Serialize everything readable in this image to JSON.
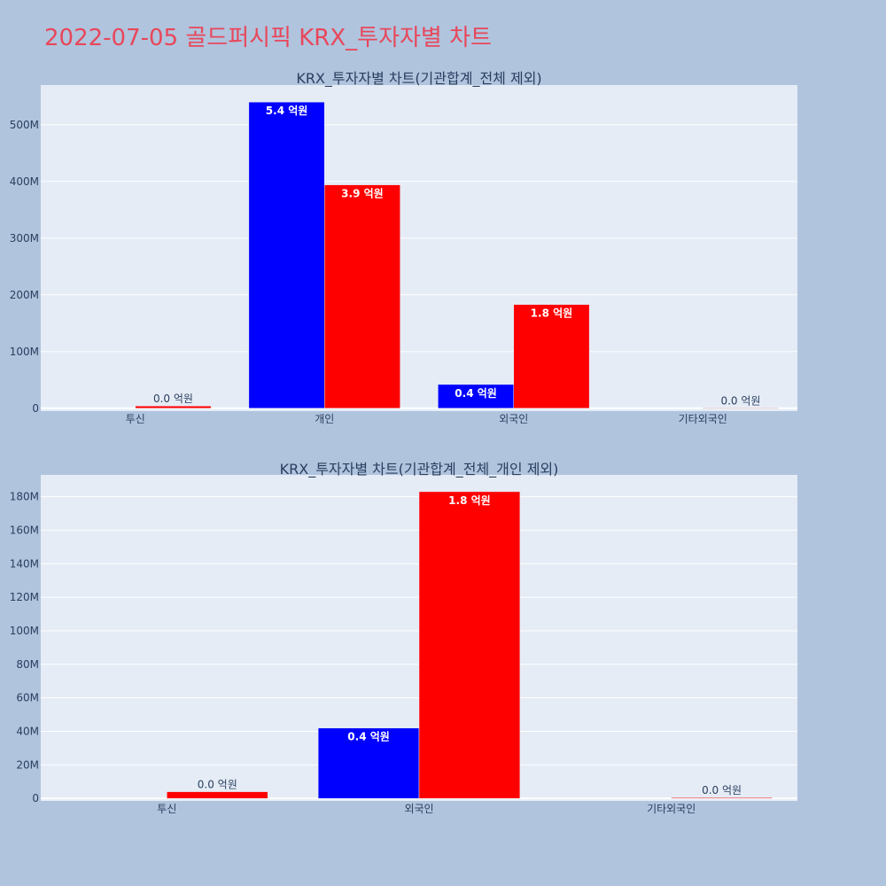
{
  "page_title": "2022-07-05 골드퍼시픽 KRX_투자자별 차트",
  "colors": {
    "background": "#b0c4de",
    "plot_bg": "#e5ecf6",
    "title": "#e8475a",
    "series_buy": "#0000ff",
    "series_sell": "#ff0000"
  },
  "chart_data": [
    {
      "type": "bar",
      "title": "KRX_투자자별 차트(기관합계_전체 제외)",
      "categories": [
        "투신",
        "개인",
        "외국인",
        "기타외국인"
      ],
      "series": [
        {
          "color": "#0000ff",
          "values": [
            0,
            540000000,
            42000000,
            0
          ],
          "labels": [
            "",
            "5.4 억원",
            "0.4 억원",
            ""
          ]
        },
        {
          "color": "#ff0000",
          "values": [
            4000000,
            394000000,
            183000000,
            500000
          ],
          "labels": [
            "0.0 억원",
            "3.9 억원",
            "1.8 억원",
            "0.0 억원"
          ]
        }
      ],
      "ylim": [
        -5000000,
        570000000
      ],
      "yticks": [
        0,
        100000000,
        200000000,
        300000000,
        400000000,
        500000000
      ],
      "ytick_labels": [
        "0",
        "100M",
        "200M",
        "300M",
        "400M",
        "500M"
      ],
      "grid": true
    },
    {
      "type": "bar",
      "title": "KRX_투자자별 차트(기관합계_전체_개인 제외)",
      "categories": [
        "투신",
        "외국인",
        "기타외국인"
      ],
      "series": [
        {
          "color": "#0000ff",
          "values": [
            0,
            42000000,
            0
          ],
          "labels": [
            "",
            "0.4 억원",
            ""
          ]
        },
        {
          "color": "#ff0000",
          "values": [
            4000000,
            183000000,
            500000
          ],
          "labels": [
            "0.0 억원",
            "1.8 억원",
            "0.0 억원"
          ]
        }
      ],
      "ylim": [
        -1500000,
        193000000
      ],
      "yticks": [
        0,
        20000000,
        40000000,
        60000000,
        80000000,
        100000000,
        120000000,
        140000000,
        160000000,
        180000000
      ],
      "ytick_labels": [
        "0",
        "20M",
        "40M",
        "60M",
        "80M",
        "100M",
        "120M",
        "140M",
        "160M",
        "180M"
      ],
      "grid": true
    }
  ]
}
